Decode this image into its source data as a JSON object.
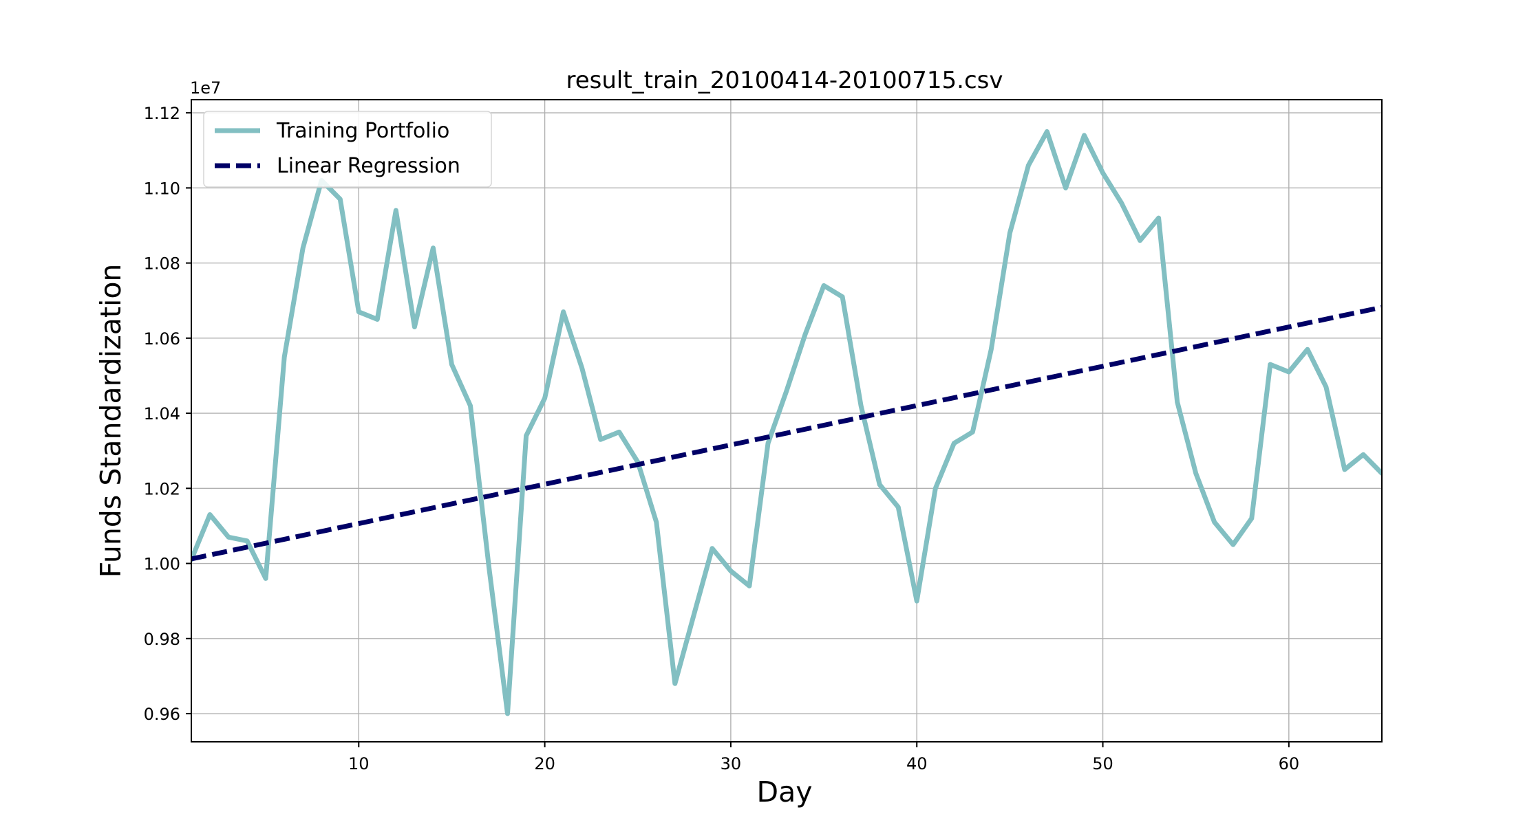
{
  "chart_data": {
    "type": "line",
    "title": "result_train_20100414-20100715.csv",
    "xlabel": "Day",
    "ylabel": "Funds Standardization",
    "y_offset_label": "1e7",
    "xlim": [
      1,
      65
    ],
    "ylim": [
      0.9525,
      1.1235
    ],
    "x_ticks": [
      10,
      20,
      30,
      40,
      50,
      60
    ],
    "y_ticks": [
      0.96,
      0.98,
      1.0,
      1.02,
      1.04,
      1.06,
      1.08,
      1.1,
      1.12
    ],
    "grid": true,
    "legend": {
      "placement": "top-left",
      "entries": [
        "Training Portfolio",
        "Linear Regression"
      ]
    },
    "series": [
      {
        "name": "Training Portfolio",
        "style": "solid",
        "color": "#82bfc2",
        "x": [
          1,
          2,
          3,
          4,
          5,
          6,
          7,
          8,
          9,
          10,
          11,
          12,
          13,
          14,
          15,
          16,
          17,
          18,
          19,
          20,
          21,
          22,
          23,
          24,
          25,
          26,
          27,
          28,
          29,
          30,
          31,
          32,
          33,
          34,
          35,
          36,
          37,
          38,
          39,
          40,
          41,
          42,
          43,
          44,
          45,
          46,
          47,
          48,
          49,
          50,
          51,
          52,
          53,
          54,
          55,
          56,
          57,
          58,
          59,
          60,
          61,
          62,
          63,
          64,
          65
        ],
        "y": [
          1.001,
          1.013,
          1.007,
          1.006,
          0.996,
          1.055,
          1.084,
          1.102,
          1.097,
          1.067,
          1.065,
          1.094,
          1.063,
          1.084,
          1.053,
          1.042,
          0.999,
          0.96,
          1.034,
          1.044,
          1.067,
          1.052,
          1.033,
          1.035,
          1.027,
          1.011,
          0.968,
          0.986,
          1.004,
          0.998,
          0.994,
          1.032,
          1.046,
          1.061,
          1.074,
          1.071,
          1.042,
          1.021,
          1.015,
          0.99,
          1.02,
          1.032,
          1.035,
          1.057,
          1.088,
          1.106,
          1.115,
          1.1,
          1.114,
          1.104,
          1.096,
          1.086,
          1.092,
          1.043,
          1.024,
          1.011,
          1.005,
          1.012,
          1.053,
          1.051,
          1.057,
          1.047,
          1.025,
          1.029,
          1.024
        ]
      },
      {
        "name": "Linear Regression",
        "style": "dashed",
        "color": "#000066",
        "x": [
          1,
          65
        ],
        "y": [
          1.0012,
          1.0682
        ]
      }
    ]
  }
}
